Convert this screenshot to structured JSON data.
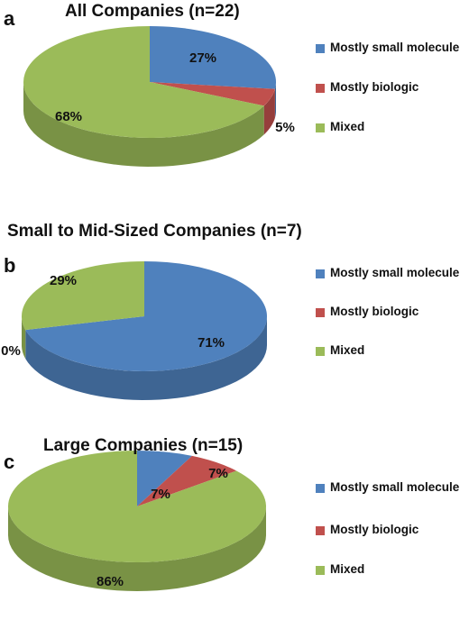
{
  "colors": {
    "small_molecule": "#4f81bd",
    "biologic": "#c0504d",
    "mixed": "#9bbb59"
  },
  "chart_data": [
    {
      "type": "pie",
      "panel": "a",
      "title": "All Companies (n=22)",
      "legend_position": "right",
      "slices": [
        {
          "name": "Mostly small molecule",
          "value": 27,
          "label": "27%"
        },
        {
          "name": "Mostly biologic",
          "value": 5,
          "label": "5%"
        },
        {
          "name": "Mixed",
          "value": 68,
          "label": "68%"
        }
      ]
    },
    {
      "type": "pie",
      "panel": "b",
      "title": "Small to Mid-Sized Companies (n=7)",
      "legend_position": "right",
      "slices": [
        {
          "name": "Mostly small molecule",
          "value": 71,
          "label": "71%"
        },
        {
          "name": "Mostly biologic",
          "value": 0,
          "label": "0%"
        },
        {
          "name": "Mixed",
          "value": 29,
          "label": "29%"
        }
      ]
    },
    {
      "type": "pie",
      "panel": "c",
      "title": "Large Companies (n=15)",
      "legend_position": "right",
      "slices": [
        {
          "name": "Mostly small molecule",
          "value": 7,
          "label": "7%"
        },
        {
          "name": "Mostly biologic",
          "value": 7,
          "label": "7%"
        },
        {
          "name": "Mixed",
          "value": 86,
          "label": "86%"
        }
      ]
    }
  ]
}
